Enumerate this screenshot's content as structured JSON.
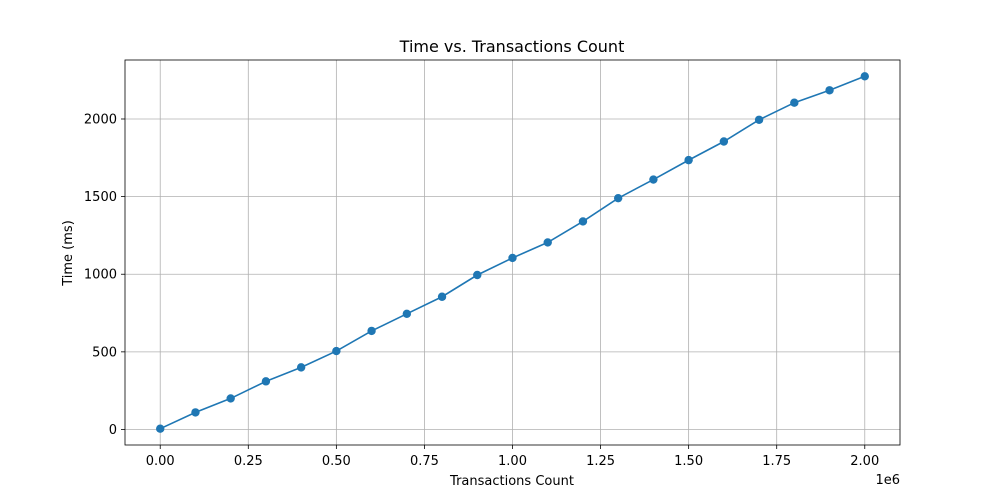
{
  "chart_data": {
    "type": "line",
    "title": "Time vs. Transactions Count",
    "xlabel": "Transactions Count",
    "ylabel": "Time (ms)",
    "x_offset_label": "1e6",
    "x_scale": 1000000,
    "xlim": [
      -100000,
      2100000
    ],
    "ylim": [
      -100,
      2380
    ],
    "x_ticks": [
      0,
      250000,
      500000,
      750000,
      1000000,
      1250000,
      1500000,
      1750000,
      2000000
    ],
    "x_tick_labels": [
      "0.00",
      "0.25",
      "0.50",
      "0.75",
      "1.00",
      "1.25",
      "1.50",
      "1.75",
      "2.00"
    ],
    "y_ticks": [
      0,
      500,
      1000,
      1500,
      2000
    ],
    "y_tick_labels": [
      "0",
      "500",
      "1000",
      "1500",
      "2000"
    ],
    "grid": true,
    "legend": "none",
    "marker": "circle",
    "color": "#1f77b4",
    "x": [
      0,
      100000,
      200000,
      300000,
      400000,
      500000,
      600000,
      700000,
      800000,
      900000,
      1000000,
      1100000,
      1200000,
      1300000,
      1400000,
      1500000,
      1600000,
      1700000,
      1800000,
      1900000,
      2000000
    ],
    "series": [
      {
        "values": [
          5,
          110,
          200,
          310,
          400,
          505,
          635,
          745,
          855,
          995,
          1105,
          1205,
          1340,
          1490,
          1610,
          1735,
          1855,
          1995,
          2105,
          2185,
          2275
        ]
      }
    ]
  }
}
